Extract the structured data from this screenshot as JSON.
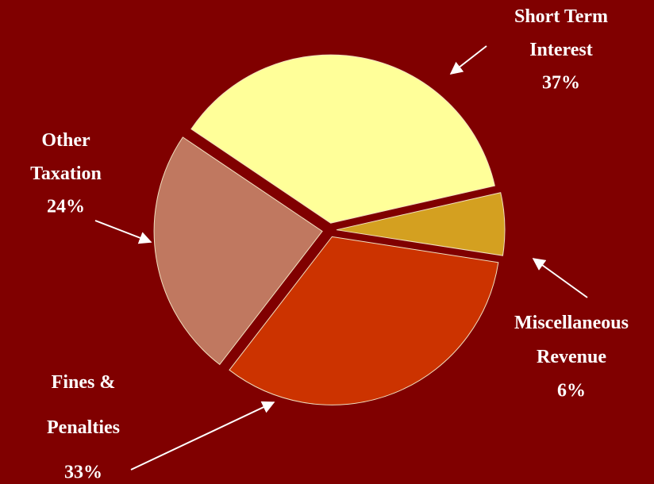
{
  "chart_data": {
    "type": "pie",
    "categories": [
      "Short Term\nInterest",
      "Miscellaneous\nRevenue",
      "Fines &\nPenalties",
      "Other\nTaxation"
    ],
    "values": [
      37,
      6,
      33,
      24
    ],
    "value_labels": [
      "37%",
      "6%",
      "33%",
      "24%"
    ],
    "colors": [
      "#ffff99",
      "#d4a020",
      "#cc3300",
      "#c07860"
    ]
  }
}
